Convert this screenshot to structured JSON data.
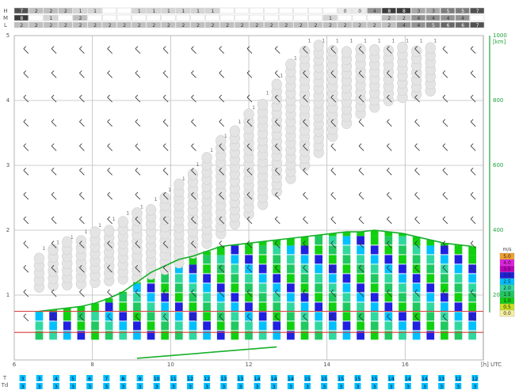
{
  "chart_data": {
    "type": "meteogram",
    "cloud_rows": [
      {
        "label": "H",
        "cells": [
          "7",
          "2",
          "2",
          "2",
          "1",
          "1",
          "",
          "",
          "1",
          "1",
          "1",
          "1",
          "1",
          "1",
          "",
          "",
          "",
          "",
          "",
          "",
          "",
          "",
          "0",
          "0",
          "4",
          "8",
          "8",
          "3",
          "3",
          "5",
          "5",
          "7"
        ]
      },
      {
        "label": "M",
        "cells": [
          "8",
          "",
          "1",
          "",
          "2",
          "",
          "",
          "",
          "",
          "",
          "",
          "",
          "",
          "",
          "",
          "",
          "",
          "",
          "",
          "",
          "",
          "1",
          "",
          "",
          "",
          "2",
          "2",
          "4",
          "4",
          "4",
          "4",
          ""
        ]
      },
      {
        "label": "L",
        "cells": [
          "2",
          "2",
          "2",
          "2",
          "2",
          "2",
          "2",
          "2",
          "2",
          "2",
          "2",
          "2",
          "2",
          "2",
          "2",
          "2",
          "2",
          "2",
          "2",
          "2",
          "2",
          "2",
          "2",
          "2",
          "2",
          "2",
          "4",
          "4",
          "5",
          "6",
          "6",
          "7"
        ]
      }
    ],
    "x_axis": {
      "unit_label": "[h] UTC",
      "ticks": [
        6,
        8,
        10,
        12,
        14,
        16
      ],
      "range": [
        6,
        18
      ]
    },
    "y_axis_right": {
      "unit_label": "[km]",
      "ticks": [
        "1000",
        "800",
        "600",
        "400",
        "200"
      ]
    },
    "y_axis_left": {
      "ticks": [
        "5",
        "4",
        "3",
        "2",
        "1"
      ]
    },
    "legend": {
      "title": "m/s",
      "entries": [
        {
          "label": "5.0",
          "color": "#f0a030"
        },
        {
          "label": "4.0",
          "color": "#e020e0"
        },
        {
          "label": "3.5",
          "color": "#c000c0"
        },
        {
          "label": "3.0",
          "color": "#2020e0"
        },
        {
          "label": "2.5",
          "color": "#00c0ff"
        },
        {
          "label": "2.0",
          "color": "#30d8a0"
        },
        {
          "label": "1.5",
          "color": "#20c860"
        },
        {
          "label": "1.0",
          "color": "#10d010"
        },
        {
          "label": "0.5",
          "color": "#c8e020"
        },
        {
          "label": "0.0",
          "color": "#f8f0a0"
        }
      ]
    },
    "thermal_top_m": [
      null,
      150,
      155,
      160,
      165,
      175,
      190,
      210,
      240,
      270,
      290,
      310,
      320,
      335,
      350,
      355,
      360,
      365,
      370,
      375,
      380,
      385,
      390,
      395,
      395,
      400,
      395,
      390,
      380,
      370,
      360,
      355,
      350
    ],
    "cumulus_base_m": [
      null,
      225,
      230,
      232,
      235,
      240,
      245,
      250,
      255,
      265,
      280,
      300,
      330,
      360,
      390,
      420,
      450,
      480,
      520,
      560,
      600,
      640,
      690,
      730,
      760,
      780,
      800,
      810,
      820,
      830,
      null,
      null,
      null
    ],
    "cumulus_label": "1",
    "bottom_row_labels": {
      "T": [
        "3",
        "3",
        "4",
        "5",
        "6",
        "7",
        "8",
        "9",
        "10",
        "11",
        "12",
        "12",
        "13",
        "13",
        "14",
        "14",
        "14",
        "15",
        "15",
        "15",
        "15",
        "15",
        "14",
        "14",
        "14",
        "13",
        "12",
        "12"
      ],
      "Td": [
        "3",
        "3",
        "3",
        "3",
        "3",
        "3",
        "3",
        "3",
        "3",
        "3",
        "3",
        "3",
        "3",
        "3",
        "3",
        "3",
        "3",
        "3",
        "3",
        "3",
        "3",
        "3",
        "3",
        "3",
        "3",
        "3",
        "3",
        "3"
      ]
    },
    "row_letters": {
      "T": "T",
      "Td": "Td"
    },
    "colors": {
      "green_line": "#17b02a",
      "red_line": "#d83a3a",
      "grid": "#bdbdbd",
      "cloud_gray": "#e4e4e4",
      "label_green": "#1fa13a",
      "cyan": "#00c0ff"
    }
  }
}
